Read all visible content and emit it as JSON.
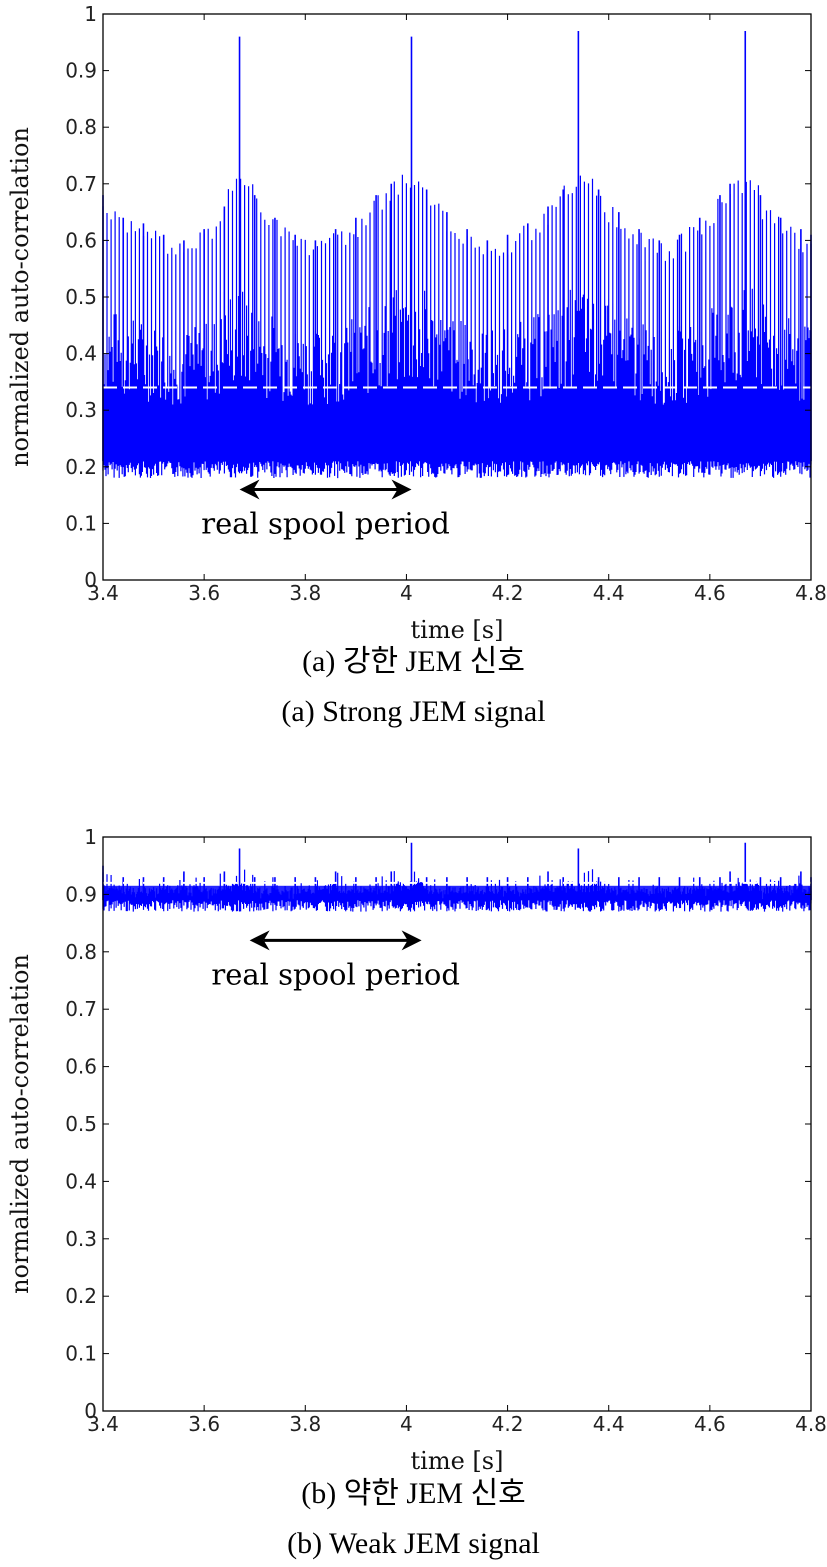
{
  "colors": {
    "signal": "#0000ff",
    "threshold": "#ffffff",
    "axis": "#000000",
    "arrow": "#000000"
  },
  "chart_data": [
    {
      "type": "line",
      "title": "",
      "xlabel": "time [s]",
      "ylabel": "normalized auto-correlation",
      "xlim": [
        3.4,
        4.8
      ],
      "ylim": [
        0,
        1
      ],
      "x_ticks": [
        "3.4",
        "3.6",
        "3.8",
        "4",
        "4.2",
        "4.4",
        "4.6",
        "4.8"
      ],
      "y_ticks": [
        "0",
        "0.1",
        "0.2",
        "0.3",
        "0.4",
        "0.5",
        "0.6",
        "0.7",
        "0.8",
        "0.9",
        "1"
      ],
      "grid": false,
      "series": [
        {
          "x": [
            3.4,
            3.44,
            3.48,
            3.52,
            3.56,
            3.6,
            3.64,
            3.67,
            3.7,
            3.74,
            3.78,
            3.82,
            3.86,
            3.9,
            3.94,
            3.97,
            4.01,
            4.04,
            4.08,
            4.12,
            4.16,
            4.2,
            4.24,
            4.28,
            4.31,
            4.34,
            4.38,
            4.42,
            4.46,
            4.5,
            4.54,
            4.58,
            4.62,
            4.64,
            4.67,
            4.7,
            4.74,
            4.78,
            4.8
          ],
          "y": [
            0.68,
            0.64,
            0.63,
            0.61,
            0.6,
            0.62,
            0.66,
            0.96,
            0.68,
            0.64,
            0.61,
            0.6,
            0.62,
            0.64,
            0.68,
            0.7,
            0.96,
            0.69,
            0.65,
            0.62,
            0.6,
            0.61,
            0.63,
            0.66,
            0.69,
            0.97,
            0.69,
            0.65,
            0.62,
            0.6,
            0.61,
            0.64,
            0.68,
            0.7,
            0.97,
            0.68,
            0.64,
            0.62,
            0.61
          ],
          "floor": 0.21
        }
      ],
      "threshold": 0.34,
      "annotation": {
        "text": "real spool period",
        "arrow_x": [
          3.67,
          4.01
        ],
        "arrow_y": 0.16
      }
    },
    {
      "type": "line",
      "title": "",
      "xlabel": "time [s]",
      "ylabel": "normalized auto-correlation",
      "xlim": [
        3.4,
        4.8
      ],
      "ylim": [
        0,
        1
      ],
      "x_ticks": [
        "3.4",
        "3.6",
        "3.8",
        "4",
        "4.2",
        "4.4",
        "4.6",
        "4.8"
      ],
      "y_ticks": [
        "0",
        "0.1",
        "0.2",
        "0.3",
        "0.4",
        "0.5",
        "0.6",
        "0.7",
        "0.8",
        "0.9",
        "1"
      ],
      "grid": false,
      "series": [
        {
          "x": [
            3.4,
            3.44,
            3.48,
            3.52,
            3.56,
            3.6,
            3.64,
            3.67,
            3.7,
            3.74,
            3.78,
            3.82,
            3.86,
            3.9,
            3.94,
            3.97,
            4.01,
            4.04,
            4.08,
            4.12,
            4.16,
            4.2,
            4.24,
            4.28,
            4.31,
            4.34,
            4.38,
            4.42,
            4.46,
            4.5,
            4.54,
            4.58,
            4.62,
            4.64,
            4.67,
            4.7,
            4.74,
            4.78,
            4.8
          ],
          "y": [
            0.95,
            0.93,
            0.93,
            0.93,
            0.94,
            0.93,
            0.94,
            0.98,
            0.93,
            0.93,
            0.93,
            0.93,
            0.94,
            0.93,
            0.93,
            0.94,
            0.99,
            0.93,
            0.93,
            0.93,
            0.93,
            0.93,
            0.93,
            0.94,
            0.93,
            0.98,
            0.93,
            0.93,
            0.93,
            0.93,
            0.93,
            0.93,
            0.93,
            0.94,
            0.99,
            0.93,
            0.93,
            0.94,
            0.93
          ],
          "floor": 0.89
        }
      ],
      "threshold": 0.92,
      "annotation": {
        "text": "real spool period",
        "arrow_x": [
          3.69,
          4.03
        ],
        "arrow_y": 0.82
      }
    }
  ],
  "captions": {
    "a_ko": "(a) 강한 JEM 신호",
    "a_en": "(a) Strong JEM signal",
    "b_ko": "(b) 약한 JEM 신호",
    "b_en": "(b) Weak JEM signal"
  }
}
